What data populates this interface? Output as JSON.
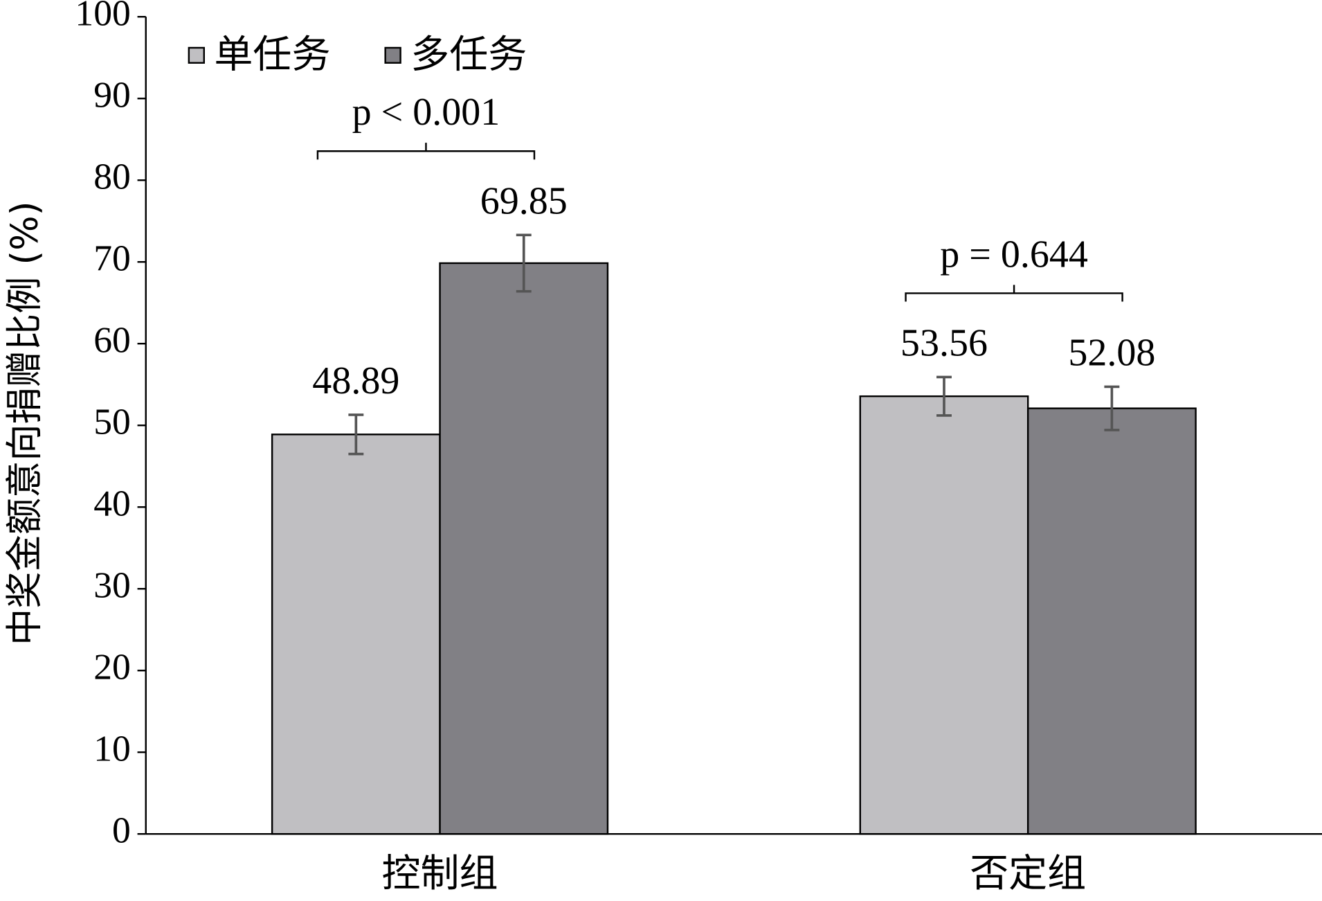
{
  "chart_data": {
    "type": "bar",
    "y_label": "中奖金额意向捐赠比例 (%)",
    "categories": [
      "控制组",
      "否定组"
    ],
    "series": [
      {
        "name": "单任务",
        "color": "#c0bfc2",
        "values": [
          48.89,
          53.56
        ],
        "errors": [
          2.4,
          2.35
        ]
      },
      {
        "name": "多任务",
        "color": "#818085",
        "values": [
          69.85,
          52.08
        ],
        "errors": [
          3.45,
          2.65
        ]
      }
    ],
    "annotations": [
      "p < 0.001",
      "p = 0.644"
    ],
    "ylim": [
      0,
      100
    ],
    "yticks": [
      0,
      10,
      20,
      30,
      40,
      50,
      60,
      70,
      80,
      90,
      100
    ],
    "legend": "top-left"
  }
}
